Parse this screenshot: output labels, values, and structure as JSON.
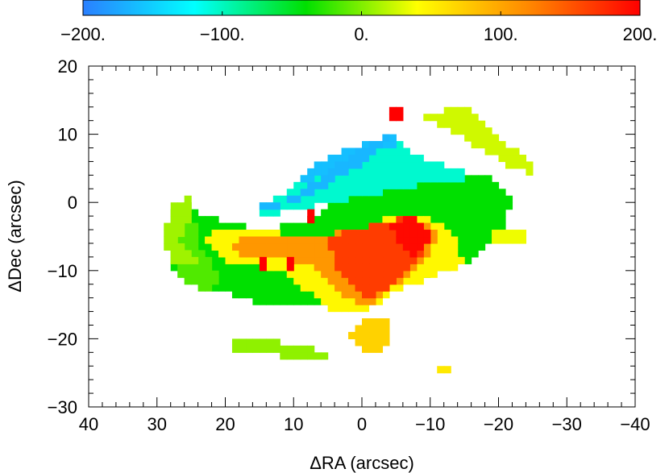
{
  "chart_data": {
    "type": "heatmap",
    "title": "",
    "xlabel": "ΔRA (arcsec)",
    "ylabel": "ΔDec (arcsec)",
    "xlim": [
      40,
      -40
    ],
    "ylim": [
      -30,
      20
    ],
    "xticks": [
      40,
      30,
      20,
      10,
      0,
      -10,
      -20,
      -30,
      -40
    ],
    "xtick_labels": [
      "40",
      "30",
      "20",
      "10",
      "0",
      "−10",
      "−20",
      "−30",
      "−40"
    ],
    "yticks": [
      -30,
      -20,
      -10,
      0,
      10,
      20
    ],
    "ytick_labels": [
      "−30",
      "−20",
      "−10",
      "0",
      "10",
      "20"
    ],
    "x_minor_step": 2,
    "y_minor_step": 2,
    "grid": false,
    "colorbar": {
      "position": "top",
      "range": [
        -200,
        200
      ],
      "ticks": [
        -200,
        -100,
        0,
        100,
        200
      ],
      "tick_labels": [
        "−200.",
        "−100.",
        "0.",
        "100.",
        "200."
      ],
      "colormap": "rainbow",
      "stops": [
        "#2a7fff",
        "#00ffff",
        "#00e000",
        "#ffff00",
        "#ff8800",
        "#ff0000"
      ]
    },
    "pixel_size_arcsec": 1.0,
    "regions": [
      {
        "shape": "polygon",
        "value": -40,
        "points": [
          [
            28,
            -2
          ],
          [
            25,
            -1
          ],
          [
            20,
            -3
          ],
          [
            15,
            -4
          ],
          [
            10,
            -3
          ],
          [
            7,
            -2
          ],
          [
            3,
            2
          ],
          [
            0,
            4
          ],
          [
            -5,
            5
          ],
          [
            -10,
            5
          ],
          [
            -14,
            4
          ],
          [
            -18,
            4
          ],
          [
            -20,
            3
          ],
          [
            -22,
            0
          ],
          [
            -20,
            -5
          ],
          [
            -15,
            -9
          ],
          [
            -8,
            -11
          ],
          [
            -3,
            -12
          ],
          [
            2,
            -14
          ],
          [
            5,
            -15
          ],
          [
            8,
            -15
          ],
          [
            15,
            -15
          ],
          [
            21,
            -13
          ],
          [
            25,
            -11
          ],
          [
            28,
            -10
          ],
          [
            25,
            -5
          ],
          [
            28,
            -2
          ]
        ]
      },
      {
        "shape": "polygon",
        "value": -15,
        "points": [
          [
            28,
            -1
          ],
          [
            25,
            0
          ],
          [
            24,
            -6
          ],
          [
            22,
            -9
          ],
          [
            21,
            -12
          ],
          [
            23,
            -13
          ],
          [
            26,
            -12
          ],
          [
            28,
            -8
          ]
        ]
      },
      {
        "shape": "polygon",
        "value": 45,
        "points": [
          [
            22,
            -4
          ],
          [
            15,
            -4
          ],
          [
            10,
            -5
          ],
          [
            5,
            -6
          ],
          [
            0,
            -4
          ],
          [
            -4,
            -2
          ],
          [
            -9,
            -2
          ],
          [
            -13,
            -4
          ],
          [
            -15,
            -9
          ],
          [
            -10,
            -11
          ],
          [
            -5,
            -13
          ],
          [
            0,
            -16
          ],
          [
            4,
            -16
          ],
          [
            8,
            -13
          ],
          [
            12,
            -10
          ],
          [
            16,
            -9
          ],
          [
            20,
            -9
          ],
          [
            23,
            -6
          ]
        ]
      },
      {
        "shape": "polygon",
        "value": 110,
        "points": [
          [
            18,
            -5
          ],
          [
            12,
            -5
          ],
          [
            6,
            -5
          ],
          [
            2,
            -4
          ],
          [
            -4,
            -3
          ],
          [
            -9,
            -3
          ],
          [
            -11,
            -5
          ],
          [
            -9,
            -9
          ],
          [
            -5,
            -12
          ],
          [
            -1,
            -15
          ],
          [
            3,
            -14
          ],
          [
            5,
            -11
          ],
          [
            8,
            -9
          ],
          [
            12,
            -8
          ],
          [
            16,
            -8
          ],
          [
            20,
            -7
          ]
        ]
      },
      {
        "shape": "polygon",
        "value": 165,
        "points": [
          [
            5,
            -5
          ],
          [
            1,
            -4
          ],
          [
            -3,
            -3
          ],
          [
            -7,
            -2
          ],
          [
            -10,
            -4
          ],
          [
            -9,
            -8
          ],
          [
            -6,
            -10
          ],
          [
            -3,
            -13
          ],
          [
            0,
            -14
          ],
          [
            2,
            -12
          ],
          [
            4,
            -9
          ]
        ]
      },
      {
        "shape": "polygon",
        "value": 195,
        "points": [
          [
            -4,
            -3
          ],
          [
            -7,
            -2
          ],
          [
            -10,
            -4
          ],
          [
            -9,
            -7
          ],
          [
            -7,
            -8
          ],
          [
            -5,
            -6
          ]
        ]
      },
      {
        "shape": "polygon",
        "value": -105,
        "points": [
          [
            16,
            -1
          ],
          [
            12,
            1
          ],
          [
            8,
            4
          ],
          [
            4,
            7
          ],
          [
            0,
            8
          ],
          [
            -3,
            9
          ],
          [
            -5,
            9
          ],
          [
            -7,
            7
          ],
          [
            -10,
            6
          ],
          [
            -13,
            5
          ],
          [
            -16,
            4
          ],
          [
            -14,
            3
          ],
          [
            -10,
            3
          ],
          [
            -5,
            2
          ],
          [
            0,
            1
          ],
          [
            5,
            0
          ],
          [
            10,
            -1
          ],
          [
            14,
            -2
          ]
        ]
      },
      {
        "shape": "polygon",
        "value": -160,
        "points": [
          [
            10,
            3
          ],
          [
            6,
            6
          ],
          [
            2,
            8
          ],
          [
            -2,
            9
          ],
          [
            -4,
            10
          ],
          [
            -6,
            9
          ],
          [
            -4,
            8
          ],
          [
            0,
            7
          ],
          [
            4,
            5
          ],
          [
            8,
            3
          ]
        ]
      },
      {
        "shape": "polygon",
        "value": -165,
        "points": [
          [
            18,
            -1
          ],
          [
            12,
            0
          ],
          [
            7,
            3
          ],
          [
            3,
            6
          ],
          [
            0,
            8
          ],
          [
            -4,
            10
          ],
          [
            -2,
            7
          ],
          [
            3,
            4
          ],
          [
            8,
            1
          ],
          [
            14,
            -1
          ]
        ]
      },
      {
        "shape": "polygon",
        "value": 10,
        "points": [
          [
            28,
            0
          ],
          [
            25,
            1
          ],
          [
            25,
            -2
          ],
          [
            27,
            -6
          ],
          [
            24,
            -9
          ],
          [
            28,
            -9
          ],
          [
            29,
            -5
          ]
        ]
      },
      {
        "shape": "polygon",
        "value": 25,
        "points": [
          [
            -9,
            13
          ],
          [
            -15,
            14
          ],
          [
            -18,
            11
          ],
          [
            -20,
            9
          ],
          [
            -24,
            7
          ],
          [
            -25,
            4
          ],
          [
            -22,
            5
          ],
          [
            -17,
            8
          ],
          [
            -12,
            11
          ],
          [
            -9,
            12
          ]
        ]
      },
      {
        "shape": "polygon",
        "value": 35,
        "points": [
          [
            -19,
            -4
          ],
          [
            -24,
            -4
          ],
          [
            -24,
            -6
          ],
          [
            -19,
            -6
          ]
        ]
      },
      {
        "shape": "polygon",
        "value": 5,
        "points": [
          [
            19,
            -20
          ],
          [
            15,
            -20
          ],
          [
            10,
            -21
          ],
          [
            5,
            -22
          ],
          [
            5,
            -23
          ],
          [
            10,
            -23
          ],
          [
            15,
            -22
          ],
          [
            19,
            -22
          ]
        ]
      },
      {
        "shape": "polygon",
        "value": 70,
        "points": [
          [
            0,
            -17
          ],
          [
            -4,
            -17
          ],
          [
            -4,
            -21
          ],
          [
            -1,
            -22
          ],
          [
            2,
            -20
          ]
        ]
      },
      {
        "shape": "polygon",
        "value": 55,
        "points": [
          [
            -11,
            -24
          ],
          [
            -13,
            -24
          ],
          [
            -13,
            -25
          ],
          [
            -11,
            -25
          ]
        ]
      },
      {
        "shape": "polygon",
        "value": 200,
        "points": [
          [
            15,
            -8
          ],
          [
            14,
            -8
          ],
          [
            14,
            -10
          ],
          [
            15,
            -10
          ]
        ]
      },
      {
        "shape": "polygon",
        "value": 200,
        "points": [
          [
            11,
            -8
          ],
          [
            10,
            -8
          ],
          [
            10,
            -10
          ],
          [
            11,
            -10
          ]
        ]
      },
      {
        "shape": "polygon",
        "value": 200,
        "points": [
          [
            8,
            -1
          ],
          [
            7,
            -1
          ],
          [
            7,
            -3
          ],
          [
            8,
            -3
          ]
        ]
      },
      {
        "shape": "polygon",
        "value": 200,
        "points": [
          [
            -4,
            14
          ],
          [
            -6,
            14
          ],
          [
            -6,
            12
          ],
          [
            -4,
            12
          ]
        ]
      }
    ]
  }
}
